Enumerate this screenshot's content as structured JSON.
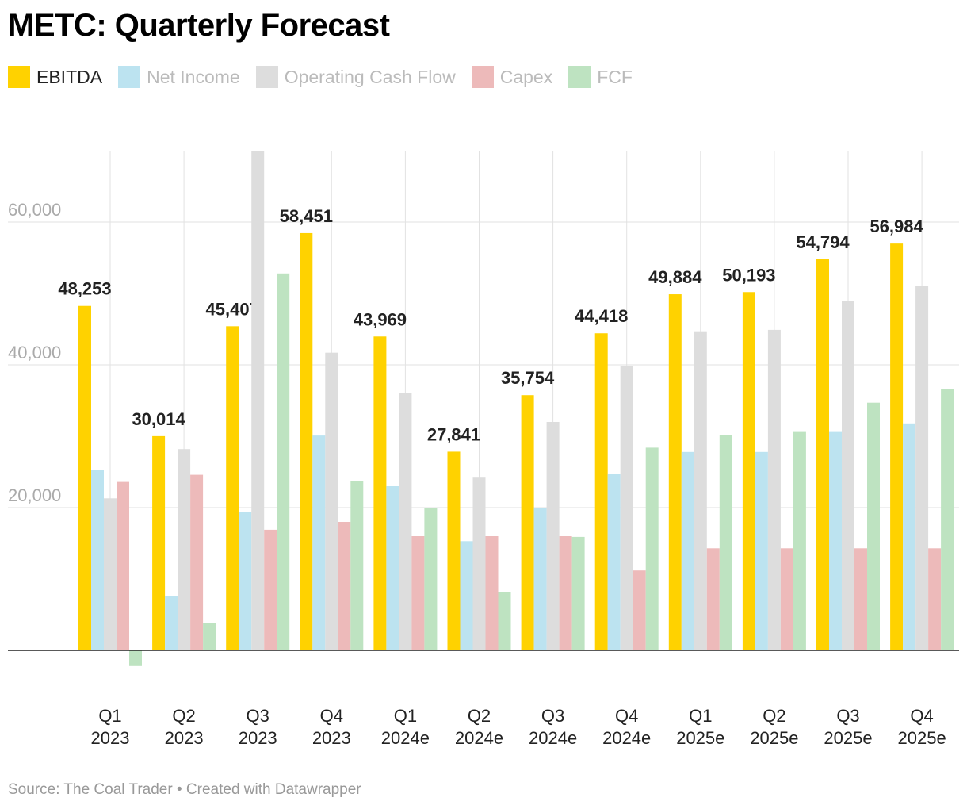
{
  "title": "METC: Quarterly Forecast",
  "source": "Source: The Coal Trader • Created with Datawrapper",
  "chart_data": {
    "type": "bar",
    "title": "METC: Quarterly Forecast",
    "categories": [
      [
        "Q1",
        "2023"
      ],
      [
        "Q2",
        "2023"
      ],
      [
        "Q3",
        "2023"
      ],
      [
        "Q4",
        "2023"
      ],
      [
        "Q1",
        "2024e"
      ],
      [
        "Q2",
        "2024e"
      ],
      [
        "Q3",
        "2024e"
      ],
      [
        "Q4",
        "2024e"
      ],
      [
        "Q1",
        "2025e"
      ],
      [
        "Q2",
        "2025e"
      ],
      [
        "Q3",
        "2025e"
      ],
      [
        "Q4",
        "2025e"
      ]
    ],
    "ylim": [
      0,
      70000
    ],
    "yticks": [
      20000,
      40000,
      60000
    ],
    "ytick_labels": [
      "20,000",
      "40,000",
      "60,000"
    ],
    "grid": true,
    "legend": "top-left",
    "series": [
      {
        "name": "EBITDA",
        "color": "#FFD200",
        "labeled": true,
        "values": [
          48253,
          30014,
          45407,
          58451,
          43969,
          27841,
          35754,
          44418,
          49884,
          50193,
          54794,
          56984
        ],
        "data_labels": [
          "48,253",
          "30,014",
          "45,407",
          "58,451",
          "43,969",
          "27,841",
          "35,754",
          "44,418",
          "49,884",
          "50,193",
          "54,794",
          "56,984"
        ]
      },
      {
        "name": "Net Income",
        "color": "#BCE3F0",
        "values": [
          25300,
          7600,
          19400,
          30100,
          23000,
          15300,
          19900,
          24700,
          27800,
          27800,
          30600,
          31800
        ]
      },
      {
        "name": "Operating Cash Flow",
        "color": "#DDDDDD",
        "values": [
          21300,
          28200,
          70000,
          41700,
          36000,
          24200,
          32000,
          39800,
          44700,
          44900,
          49000,
          51000
        ]
      },
      {
        "name": "Capex",
        "color": "#EDBABA",
        "values": [
          23600,
          24600,
          16900,
          18000,
          16000,
          16000,
          16000,
          11200,
          14300,
          14300,
          14300,
          14300
        ]
      },
      {
        "name": "FCF",
        "color": "#BEE3C1",
        "values": [
          -2200,
          3800,
          52800,
          23700,
          19900,
          8200,
          15900,
          28400,
          30200,
          30600,
          34700,
          36600
        ]
      }
    ]
  }
}
